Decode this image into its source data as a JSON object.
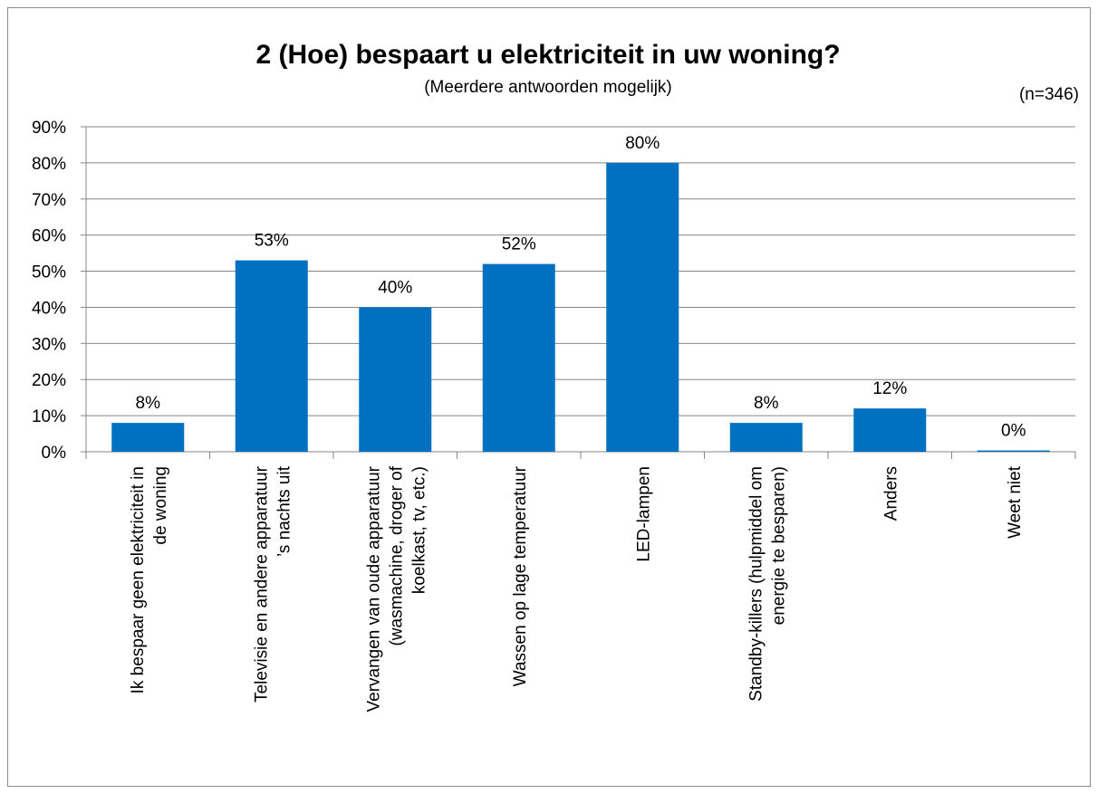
{
  "chart_data": {
    "type": "bar",
    "title": "2 (Hoe) bespaart u elektriciteit in uw woning?",
    "subtitle": "(Meerdere antwoorden mogelijk)",
    "note": "(n=346)",
    "ylim": [
      0,
      90
    ],
    "ytick_step": 10,
    "ytick_format": "%",
    "grid": true,
    "categories": [
      [
        "Ik bespaar geen elektriciteit in",
        "de woning"
      ],
      [
        "Televisie en andere apparatuur",
        "’s nachts uit"
      ],
      [
        "Vervangen van oude apparatuur",
        "(wasmachine, droger of",
        "koelkast, tv, etc.)"
      ],
      [
        "Wassen op lage temperatuur"
      ],
      [
        "LED-lampen"
      ],
      [
        "Standby-killers (hulpmiddel om",
        "energie te besparen)"
      ],
      [
        "Anders"
      ],
      [
        "Weet niet"
      ]
    ],
    "values": [
      8,
      53,
      40,
      52,
      80,
      8,
      12,
      0
    ],
    "data_labels": [
      "8%",
      "53%",
      "40%",
      "52%",
      "80%",
      "8%",
      "12%",
      "0%"
    ],
    "bar_color": "#0070C0",
    "grid_color": "#868686"
  }
}
